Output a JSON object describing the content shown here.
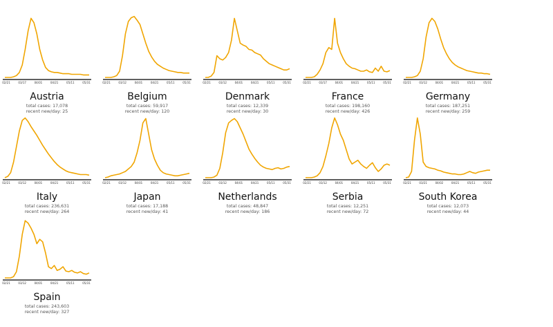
{
  "chart_data": [
    {
      "type": "line",
      "country": "Austria",
      "total_label": "total cases: 17,078",
      "recent_label": "recent new/day: 25",
      "x_ticks": [
        "02/21",
        "03/17",
        "04/01",
        "04/21",
        "05/11",
        "05/31"
      ],
      "color": "#f0a500",
      "y": [
        0,
        0,
        0,
        1,
        3,
        8,
        20,
        45,
        75,
        95,
        88,
        70,
        45,
        28,
        16,
        11,
        9,
        8,
        8,
        7,
        6,
        6,
        6,
        5,
        5,
        5,
        5,
        4,
        4,
        4
      ]
    },
    {
      "type": "line",
      "country": "Belgium",
      "total_label": "total cases: 59,917",
      "recent_label": "recent new/day: 120",
      "x_ticks": [
        "02/21",
        "03/12",
        "04/01",
        "04/21",
        "05/11",
        "05/31"
      ],
      "color": "#f0a500",
      "y": [
        0,
        0,
        0,
        1,
        3,
        10,
        35,
        70,
        90,
        96,
        98,
        92,
        85,
        70,
        55,
        42,
        33,
        26,
        21,
        18,
        15,
        13,
        11,
        10,
        9,
        8,
        8,
        7,
        7,
        7
      ]
    },
    {
      "type": "line",
      "country": "Denmark",
      "total_label": "total cases: 12,339",
      "recent_label": "recent new/day: 30",
      "x_ticks": [
        "02/21",
        "03/12",
        "04/01",
        "04/21",
        "05/11",
        "05/31"
      ],
      "color": "#f0a500",
      "y": [
        0,
        0,
        2,
        8,
        35,
        30,
        28,
        32,
        40,
        60,
        95,
        75,
        55,
        52,
        50,
        45,
        44,
        40,
        38,
        36,
        30,
        26,
        22,
        20,
        18,
        16,
        14,
        12,
        12,
        14
      ]
    },
    {
      "type": "line",
      "country": "France",
      "total_label": "total cases: 198,160",
      "recent_label": "recent new/day: 426",
      "x_ticks": [
        "02/21",
        "03/17",
        "04/01",
        "04/21",
        "05/11",
        "05/31"
      ],
      "color": "#f0a500",
      "y": [
        0,
        0,
        0,
        1,
        5,
        12,
        22,
        40,
        48,
        45,
        95,
        55,
        40,
        30,
        22,
        18,
        15,
        14,
        12,
        10,
        10,
        12,
        9,
        8,
        15,
        10,
        18,
        10,
        9,
        11
      ]
    },
    {
      "type": "line",
      "country": "Germany",
      "total_label": "total cases: 187,251",
      "recent_label": "recent new/day: 259",
      "x_ticks": [
        "02/21",
        "03/12",
        "04/01",
        "04/21",
        "05/11",
        "05/31"
      ],
      "color": "#f0a500",
      "y": [
        0,
        0,
        0,
        1,
        3,
        10,
        30,
        65,
        88,
        95,
        90,
        78,
        62,
        48,
        38,
        30,
        24,
        20,
        17,
        15,
        13,
        11,
        10,
        9,
        8,
        7,
        7,
        6,
        6,
        5
      ]
    },
    {
      "type": "line",
      "country": "Italy",
      "total_label": "total cases: 236,631",
      "recent_label": "recent new/day: 264",
      "x_ticks": [
        "02/21",
        "03/12",
        "04/01",
        "04/21",
        "05/11",
        "05/31"
      ],
      "color": "#f0a500",
      "y": [
        0,
        2,
        8,
        25,
        50,
        75,
        92,
        96,
        90,
        82,
        75,
        68,
        60,
        52,
        45,
        38,
        32,
        26,
        21,
        17,
        14,
        11,
        9,
        8,
        7,
        6,
        5,
        5,
        5,
        4
      ]
    },
    {
      "type": "line",
      "country": "Japan",
      "total_label": "total cases: 17,188",
      "recent_label": "recent new/day: 41",
      "x_ticks": [
        "02/21",
        "03/12",
        "04/01",
        "04/21",
        "05/11",
        "05/31"
      ],
      "color": "#f0a500",
      "y": [
        0,
        1,
        3,
        4,
        5,
        6,
        8,
        10,
        14,
        18,
        25,
        40,
        60,
        88,
        95,
        70,
        45,
        30,
        20,
        12,
        8,
        6,
        5,
        4,
        3,
        3,
        4,
        5,
        6,
        7
      ]
    },
    {
      "type": "line",
      "country": "Netherlands",
      "total_label": "total cases: 48,847",
      "recent_label": "recent new/day: 186",
      "x_ticks": [
        "02/21",
        "03/12",
        "04/01",
        "04/21",
        "05/11",
        "05/31"
      ],
      "color": "#f0a500",
      "y": [
        0,
        0,
        0,
        1,
        4,
        15,
        40,
        72,
        88,
        92,
        95,
        90,
        80,
        70,
        58,
        46,
        38,
        31,
        25,
        20,
        17,
        15,
        14,
        13,
        15,
        16,
        14,
        15,
        17,
        18
      ]
    },
    {
      "type": "line",
      "country": "Serbia",
      "total_label": "total cases: 12,251",
      "recent_label": "recent new/day: 72",
      "x_ticks": [
        "02/21",
        "03/12",
        "04/01",
        "04/21",
        "05/11",
        "05/31"
      ],
      "color": "#f0a500",
      "y": [
        0,
        0,
        0,
        1,
        3,
        8,
        18,
        35,
        55,
        80,
        96,
        85,
        70,
        60,
        45,
        30,
        22,
        25,
        28,
        22,
        18,
        15,
        20,
        24,
        16,
        10,
        14,
        20,
        22,
        20
      ]
    },
    {
      "type": "line",
      "country": "South Korea",
      "total_label": "total cases: 12,073",
      "recent_label": "recent new/day: 44",
      "x_ticks": [
        "02/21",
        "03/21",
        "04/02",
        "04/21",
        "05/11",
        "05/31"
      ],
      "color": "#f0a500",
      "y": [
        0,
        1,
        10,
        60,
        96,
        70,
        25,
        18,
        16,
        15,
        14,
        12,
        11,
        9,
        8,
        7,
        6,
        6,
        5,
        5,
        6,
        8,
        10,
        8,
        7,
        9,
        10,
        11,
        12,
        12
      ]
    },
    {
      "type": "line",
      "country": "Spain",
      "total_label": "total cases: 243,603",
      "recent_label": "recent new/day: 327",
      "x_ticks": [
        "02/21",
        "03/12",
        "04/01",
        "04/21",
        "05/11",
        "05/31"
      ],
      "color": "#f0a500",
      "y": [
        0,
        0,
        0,
        2,
        10,
        35,
        70,
        92,
        88,
        80,
        70,
        55,
        62,
        58,
        40,
        18,
        15,
        20,
        12,
        14,
        18,
        11,
        10,
        12,
        9,
        8,
        10,
        7,
        6,
        8
      ]
    }
  ]
}
